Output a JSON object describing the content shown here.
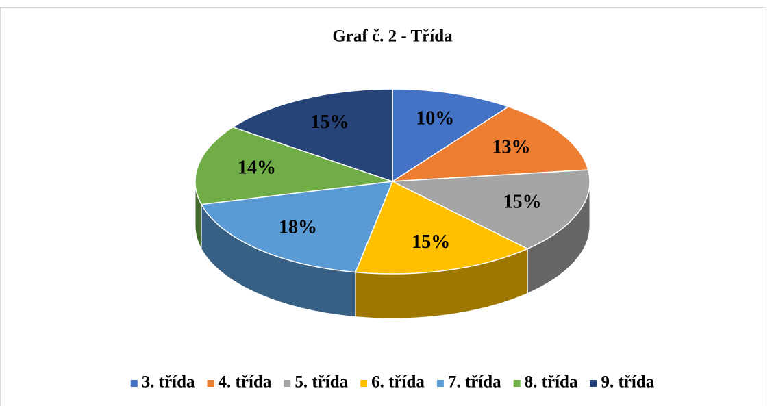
{
  "chart_data": {
    "type": "pie",
    "title": "Graf č. 2 - Třída",
    "categories": [
      "3. třída",
      "4. třída",
      "5. třída",
      "6. třída",
      "7. třída",
      "8. třída",
      "9. třída"
    ],
    "values": [
      10,
      13,
      15,
      15,
      18,
      14,
      15
    ],
    "value_labels": [
      "10%",
      "13%",
      "15%",
      "15%",
      "18%",
      "14%",
      "15%"
    ],
    "colors": [
      "#4472c4",
      "#ed7d31",
      "#a5a5a5",
      "#ffc000",
      "#5b9bd5",
      "#70ad47",
      "#264478"
    ],
    "legend": "bottom"
  }
}
